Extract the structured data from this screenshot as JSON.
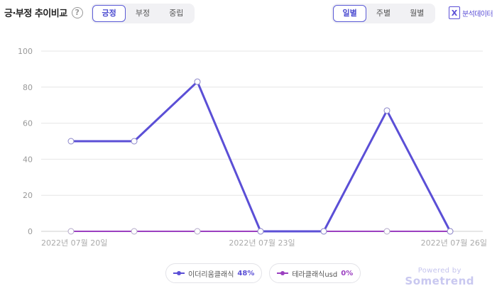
{
  "header": {
    "title": "긍·부정 추이비교",
    "help_symbol": "?",
    "sentiment_tabs": [
      {
        "label": "긍정",
        "active": true
      },
      {
        "label": "부정",
        "active": false
      },
      {
        "label": "중립",
        "active": false
      }
    ],
    "period_tabs": [
      {
        "label": "일별",
        "active": true
      },
      {
        "label": "주별",
        "active": false
      },
      {
        "label": "월별",
        "active": false
      }
    ],
    "export_label": "분석데이터",
    "export_icon": "excel-icon",
    "accent_color": "#5b5bd6"
  },
  "chart_data": {
    "type": "line",
    "x": [
      "2022-07-20",
      "2022-07-21",
      "2022-07-22",
      "2022-07-23",
      "2022-07-24",
      "2022-07-25",
      "2022-07-26"
    ],
    "tick_labels": [
      {
        "index": 0,
        "label": "2022년 07월 20일"
      },
      {
        "index": 3,
        "label": "2022년 07월 23일"
      },
      {
        "index": 6,
        "label": "2022년 07월 26일"
      }
    ],
    "ylim": [
      0,
      100
    ],
    "yticks": [
      0,
      20,
      40,
      60,
      80,
      100
    ],
    "grid": true,
    "legend_position": "bottom-center",
    "series": [
      {
        "name": "이더리움클래식",
        "percent": "48%",
        "color": "#5b4fd6",
        "values": [
          50,
          50,
          83,
          0,
          0,
          67,
          0
        ]
      },
      {
        "name": "테라클래식usd",
        "percent": "0%",
        "color": "#9b3fc0",
        "values": [
          0,
          0,
          0,
          0,
          0,
          0,
          0
        ]
      }
    ]
  },
  "footer": {
    "powered_by": "Powered by",
    "brand": "Sometrend"
  }
}
